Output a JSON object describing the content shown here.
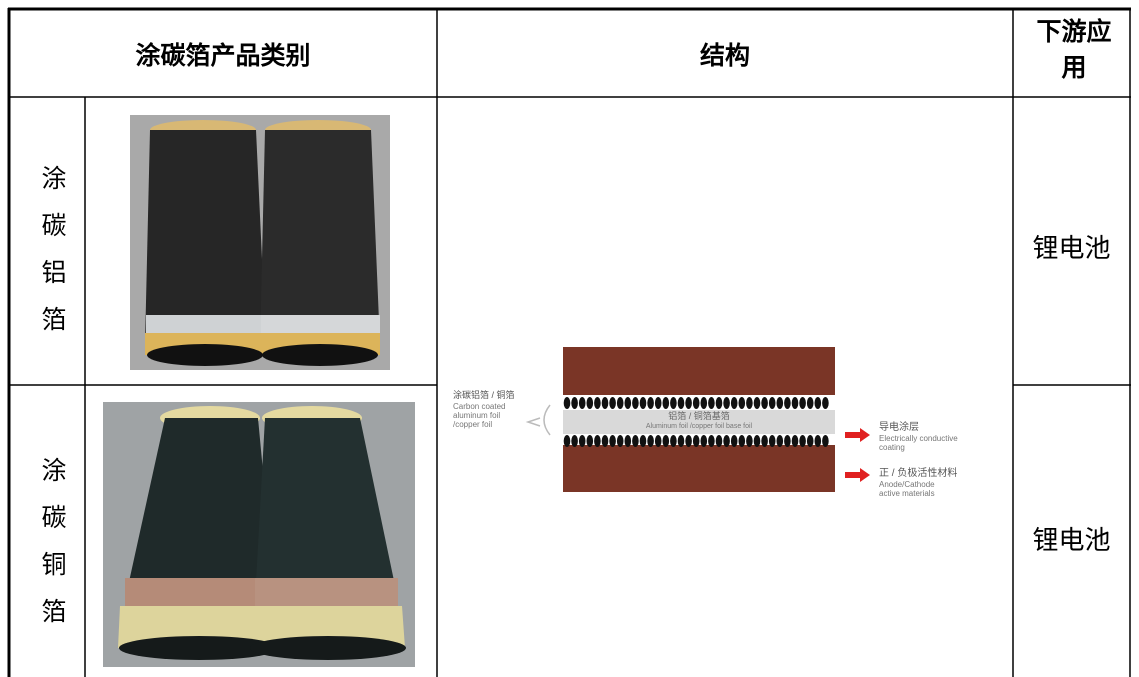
{
  "table": {
    "header": [
      "涂碳箔产品类别",
      "结构",
      "下游应用"
    ],
    "rows": [
      [
        "涂碳铝箔",
        "锂电池"
      ],
      [
        "涂碳铜箔",
        "锂电池"
      ]
    ]
  },
  "diagram": {
    "left_label_zh": "涂碳铝箔 / 铜箔",
    "left_label_en": [
      "Carbon coated",
      "aluminum foil",
      "/copper foil"
    ],
    "center_label_zh": "铝箔 / 铜箔基箔",
    "center_label_en": "Aluminum foil /copper foil base foil",
    "coating_zh": "导电涂层",
    "coating_en": [
      "Electrically conductive",
      "coating"
    ],
    "active_zh": "正 / 负极活性材料",
    "active_en": [
      "Anode/Cathode",
      "active materials"
    ]
  }
}
